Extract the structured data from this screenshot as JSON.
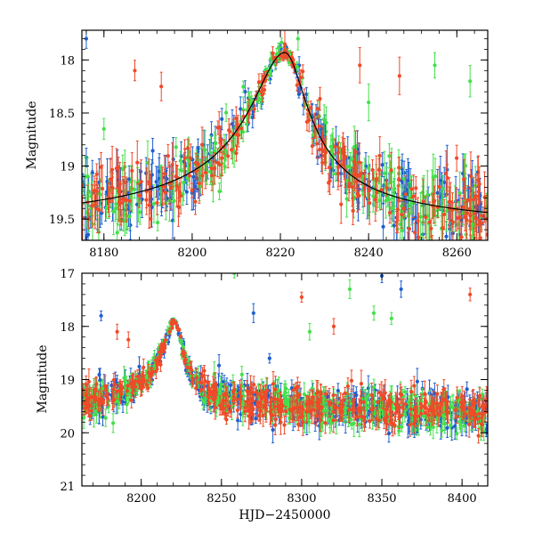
{
  "colors": {
    "blue": "#1f5fd0",
    "green": "#44e04a",
    "red": "#f04a28",
    "model": "#000000"
  },
  "chart_data": [
    {
      "type": "scatter",
      "panel": "top",
      "title": "",
      "xlabel": "",
      "ylabel": "Magnitude",
      "xlim": [
        8175,
        8267
      ],
      "ylim": [
        19.7,
        17.72
      ],
      "y_inverted": true,
      "x_ticks": [
        8180,
        8200,
        8220,
        8240,
        8260
      ],
      "x_tick_labels": [
        "8180",
        "8200",
        "8220",
        "8240",
        "8260"
      ],
      "y_ticks": [
        18,
        18.5,
        19,
        19.5
      ],
      "y_tick_labels": [
        "18",
        "18.5",
        "19",
        "19.5"
      ],
      "peak_x": 8221,
      "peak_mag": 17.93,
      "baseline_mag": 19.62,
      "series": [
        {
          "color_key": "blue",
          "sample": [
            [
              8176,
              17.8
            ],
            [
              8176,
              18.92
            ],
            [
              8212,
              18.3
            ],
            [
              8235,
              19.1
            ],
            [
              8250,
              19.5
            ]
          ]
        },
        {
          "color_key": "green",
          "sample": [
            [
              8180,
              18.65
            ],
            [
              8224,
              17.8
            ],
            [
              8240,
              18.4
            ],
            [
              8255,
              18.05
            ],
            [
              8263,
              18.2
            ]
          ]
        },
        {
          "color_key": "red",
          "sample": [
            [
              8187,
              18.1
            ],
            [
              8193,
              18.25
            ],
            [
              8221,
              17.85
            ],
            [
              8238,
              18.05
            ],
            [
              8247,
              18.15
            ]
          ]
        }
      ]
    },
    {
      "type": "scatter",
      "panel": "bottom",
      "title": "",
      "xlabel": "HJD−2450000",
      "ylabel": "Magnitude",
      "xlim": [
        8163,
        8416
      ],
      "ylim": [
        21,
        17
      ],
      "y_inverted": true,
      "x_ticks": [
        8200,
        8250,
        8300,
        8350,
        8400
      ],
      "x_tick_labels": [
        "8200",
        "8250",
        "8300",
        "8350",
        "8400"
      ],
      "y_ticks": [
        17,
        18,
        19,
        20,
        21
      ],
      "y_tick_labels": [
        "17",
        "18",
        "19",
        "20",
        "21"
      ],
      "peak_x": 8221,
      "peak_mag": 17.93,
      "baseline_mag": 19.62,
      "series": [
        {
          "color_key": "blue",
          "sample": [
            [
              8175,
              17.8
            ],
            [
              8270,
              17.75
            ],
            [
              8350,
              17.05
            ],
            [
              8362,
              17.3
            ],
            [
              8280,
              18.6
            ]
          ]
        },
        {
          "color_key": "green",
          "sample": [
            [
              8258,
              17.0
            ],
            [
              8330,
              17.3
            ],
            [
              8345,
              17.75
            ],
            [
              8356,
              17.85
            ],
            [
              8305,
              18.1
            ]
          ]
        },
        {
          "color_key": "red",
          "sample": [
            [
              8185,
              18.1
            ],
            [
              8192,
              18.25
            ],
            [
              8300,
              17.45
            ],
            [
              8405,
              17.4
            ],
            [
              8320,
              18.0
            ]
          ]
        }
      ]
    }
  ]
}
